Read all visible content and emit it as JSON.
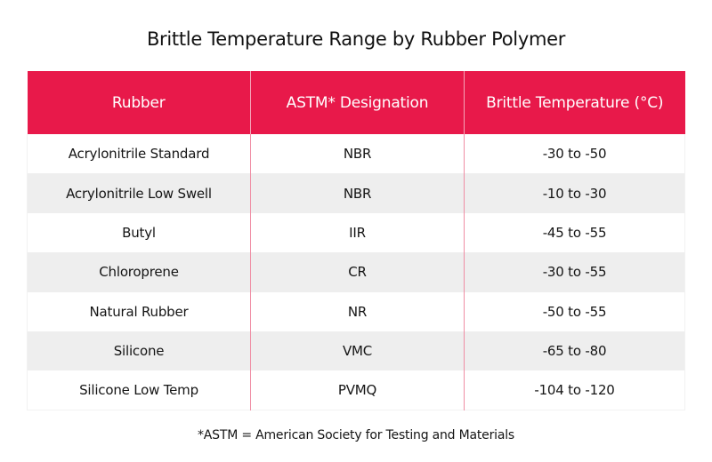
{
  "title": "Brittle Temperature Range by Rubber Polymer",
  "colors": {
    "header_bg": "#E8194A",
    "header_text": "#FFFFFF",
    "row_alt_bg": "#EEEEEE",
    "divider": "#EF8EA4"
  },
  "table": {
    "headers": [
      "Rubber",
      "ASTM* Designation",
      "Brittle Temperature (°C)"
    ],
    "rows": [
      [
        "Acrylonitrile Standard",
        "NBR",
        "-30 to -50"
      ],
      [
        "Acrylonitrile Low Swell",
        "NBR",
        "-10 to -30"
      ],
      [
        "Butyl",
        "IIR",
        "-45 to -55"
      ],
      [
        "Chloroprene",
        "CR",
        "-30 to -55"
      ],
      [
        "Natural Rubber",
        "NR",
        "-50 to -55"
      ],
      [
        "Silicone",
        "VMC",
        "-65 to -80"
      ],
      [
        "Silicone Low Temp",
        "PVMQ",
        "-104 to -120"
      ]
    ]
  },
  "footnote": "*ASTM = American Society for Testing and Materials"
}
